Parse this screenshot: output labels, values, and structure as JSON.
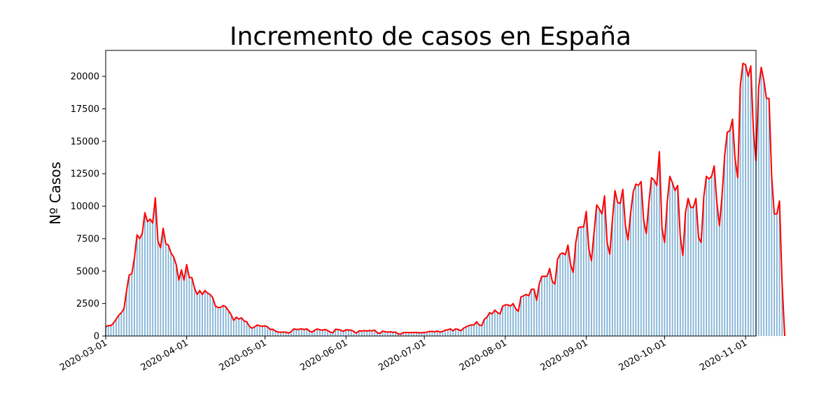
{
  "chart_data": {
    "type": "bar",
    "title": "Incremento de casos en España",
    "xlabel": "",
    "ylabel": "Nº Casos",
    "x_start": "2020-03-01",
    "x_end": "2020-11-04",
    "xlim": [
      "2020-03-01",
      "2020-11-05"
    ],
    "ylim": [
      0,
      22000
    ],
    "x_ticks": [
      "2020-03-01",
      "2020-04-01",
      "2020-05-01",
      "2020-06-01",
      "2020-07-01",
      "2020-08-01",
      "2020-09-01",
      "2020-10-01",
      "2020-11-01"
    ],
    "y_ticks": [
      0,
      2500,
      5000,
      7500,
      10000,
      12500,
      15000,
      17500,
      20000
    ],
    "bar_color": "#1f77b4",
    "line_color": "#ff0000",
    "grid": false,
    "values": [
      700,
      800,
      800,
      1000,
      1300,
      1600,
      1800,
      2100,
      3500,
      4700,
      4800,
      6000,
      7800,
      7500,
      7900,
      9500,
      8800,
      9000,
      8700,
      10650,
      7300,
      6800,
      8300,
      7100,
      7000,
      6400,
      6100,
      5500,
      4300,
      5100,
      4300,
      5500,
      4500,
      4500,
      3700,
      3200,
      3500,
      3200,
      3500,
      3300,
      3200,
      2950,
      2300,
      2200,
      2200,
      2350,
      2250,
      1950,
      1650,
      1200,
      1450,
      1300,
      1400,
      1150,
      1100,
      750,
      600,
      700,
      850,
      780,
      750,
      780,
      700,
      500,
      520,
      380,
      300,
      300,
      300,
      300,
      220,
      330,
      550,
      500,
      520,
      550,
      500,
      550,
      380,
      300,
      450,
      540,
      480,
      450,
      500,
      420,
      300,
      250,
      520,
      500,
      450,
      350,
      480,
      450,
      450,
      350,
      220,
      400,
      380,
      420,
      380,
      420,
      400,
      450,
      250,
      200,
      370,
      330,
      300,
      330,
      280,
      300,
      150,
      150,
      270,
      270,
      260,
      270,
      270,
      270,
      250,
      250,
      270,
      300,
      350,
      350,
      320,
      380,
      300,
      350,
      450,
      480,
      550,
      400,
      550,
      500,
      400,
      600,
      700,
      800,
      850,
      850,
      1100,
      850,
      800,
      1300,
      1450,
      1800,
      1700,
      2000,
      1800,
      1700,
      2300,
      2400,
      2400,
      2300,
      2500,
      2100,
      1900,
      3000,
      3100,
      3200,
      3100,
      3600,
      3600,
      2750,
      4000,
      4600,
      4600,
      4600,
      5200,
      4200,
      4000,
      5900,
      6300,
      6400,
      6250,
      7000,
      5500,
      4900,
      7200,
      8350,
      8400,
      8400,
      9600,
      6700,
      5800,
      8000,
      10100,
      9800,
      9400,
      10800,
      7200,
      6300,
      8900,
      11200,
      10300,
      10200,
      11300,
      8500,
      7400,
      9500,
      11100,
      11700,
      11600,
      11900,
      8900,
      7900,
      10300,
      12200,
      12000,
      11600,
      14200,
      8300,
      7200,
      10300,
      12300,
      11800,
      11200,
      11600,
      7700,
      6200,
      9500,
      10600,
      9900,
      9900,
      10600,
      7600,
      7200,
      10700,
      12300,
      12100,
      12300,
      13100,
      10300,
      8500,
      10800,
      13900,
      15700,
      15800,
      16700,
      13600,
      12200,
      19300,
      21000,
      20900,
      20000,
      20800,
      15900,
      13500,
      19100,
      20700,
      19700,
      18300,
      18300,
      12300,
      9400,
      9400,
      10400,
      4000,
      0
    ]
  }
}
